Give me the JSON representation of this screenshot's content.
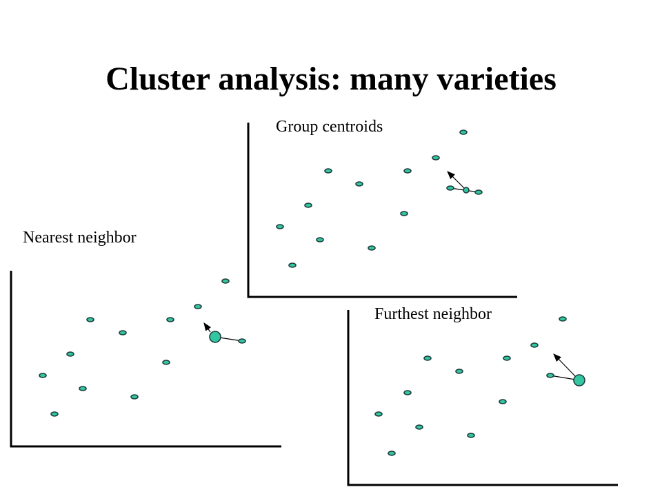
{
  "title": "Cluster analysis: many varieties",
  "panels": [
    {
      "label": "Group centroids"
    },
    {
      "label": "Nearest neighbor"
    },
    {
      "label": "Furthest neighbor"
    }
  ]
}
